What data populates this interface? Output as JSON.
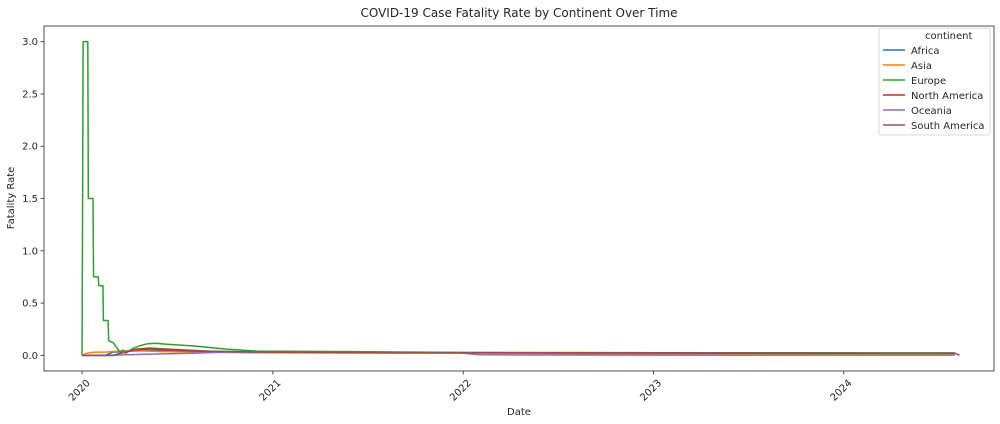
{
  "chart_data": {
    "type": "line",
    "title": "COVID-19 Case Fatality Rate by Continent Over Time",
    "xlabel": "Date",
    "ylabel": "Fatality Rate",
    "x_axis": {
      "kind": "date",
      "range": [
        "2019-10-20",
        "2024-10-15"
      ],
      "ticks": [
        "2020",
        "2021",
        "2022",
        "2023",
        "2024"
      ],
      "tick_dates": [
        "2020-01-01",
        "2021-01-01",
        "2022-01-01",
        "2023-01-01",
        "2024-01-01"
      ],
      "tick_rotation_deg": 45
    },
    "y_axis": {
      "range": [
        -0.15,
        3.15
      ],
      "ticks": [
        0.0,
        0.5,
        1.0,
        1.5,
        2.0,
        2.5,
        3.0
      ],
      "tick_labels": [
        "0.0",
        "0.5",
        "1.0",
        "1.5",
        "2.0",
        "2.5",
        "3.0"
      ]
    },
    "grid": false,
    "legend": {
      "title": "continent",
      "placement": "top-right"
    },
    "series": [
      {
        "name": "Africa",
        "color": "#1f77b4",
        "points": [
          [
            "2020-01-01",
            0.0
          ],
          [
            "2020-02-14",
            0.0
          ],
          [
            "2020-03-01",
            0.03
          ],
          [
            "2020-04-01",
            0.04
          ],
          [
            "2020-05-15",
            0.045
          ],
          [
            "2020-08-01",
            0.03
          ],
          [
            "2021-01-01",
            0.025
          ],
          [
            "2022-01-01",
            0.022
          ],
          [
            "2023-01-01",
            0.02
          ],
          [
            "2024-01-01",
            0.02
          ],
          [
            "2024-08-01",
            0.02
          ]
        ]
      },
      {
        "name": "Asia",
        "color": "#ff7f0e",
        "points": [
          [
            "2020-01-01",
            0.0
          ],
          [
            "2020-01-10",
            0.02
          ],
          [
            "2020-01-25",
            0.03
          ],
          [
            "2020-02-15",
            0.03
          ],
          [
            "2020-03-10",
            0.04
          ],
          [
            "2020-04-15",
            0.045
          ],
          [
            "2020-06-01",
            0.035
          ],
          [
            "2020-09-01",
            0.03
          ],
          [
            "2021-01-01",
            0.025
          ],
          [
            "2022-01-01",
            0.02
          ],
          [
            "2023-01-01",
            0.012
          ],
          [
            "2024-01-01",
            0.01
          ],
          [
            "2024-08-01",
            0.01
          ]
        ]
      },
      {
        "name": "Europe",
        "color": "#2ca02c",
        "points": [
          [
            "2020-01-01",
            0.0
          ],
          [
            "2020-01-03",
            3.0
          ],
          [
            "2020-01-12",
            3.0
          ],
          [
            "2020-01-13",
            1.5
          ],
          [
            "2020-01-22",
            1.5
          ],
          [
            "2020-01-23",
            0.75
          ],
          [
            "2020-02-01",
            0.75
          ],
          [
            "2020-02-02",
            0.667
          ],
          [
            "2020-02-10",
            0.667
          ],
          [
            "2020-02-11",
            0.333
          ],
          [
            "2020-02-20",
            0.333
          ],
          [
            "2020-02-21",
            0.14
          ],
          [
            "2020-03-01",
            0.12
          ],
          [
            "2020-03-08",
            0.07
          ],
          [
            "2020-03-14",
            0.03
          ],
          [
            "2020-03-20",
            0.05
          ],
          [
            "2020-03-25",
            0.02
          ],
          [
            "2020-04-05",
            0.06
          ],
          [
            "2020-04-20",
            0.09
          ],
          [
            "2020-05-05",
            0.11
          ],
          [
            "2020-05-20",
            0.115
          ],
          [
            "2020-06-15",
            0.105
          ],
          [
            "2020-08-01",
            0.09
          ],
          [
            "2020-10-01",
            0.06
          ],
          [
            "2020-12-01",
            0.04
          ],
          [
            "2021-06-01",
            0.035
          ],
          [
            "2022-01-01",
            0.028
          ],
          [
            "2023-01-01",
            0.025
          ],
          [
            "2024-01-01",
            0.024
          ],
          [
            "2024-08-01",
            0.023
          ]
        ]
      },
      {
        "name": "North America",
        "color": "#d62728",
        "points": [
          [
            "2020-01-01",
            0.0
          ],
          [
            "2020-03-01",
            0.0
          ],
          [
            "2020-03-15",
            0.02
          ],
          [
            "2020-04-10",
            0.05
          ],
          [
            "2020-05-10",
            0.06
          ],
          [
            "2020-06-15",
            0.05
          ],
          [
            "2020-09-01",
            0.035
          ],
          [
            "2021-01-01",
            0.028
          ],
          [
            "2022-01-01",
            0.025
          ],
          [
            "2023-01-01",
            0.022
          ],
          [
            "2024-01-01",
            0.02
          ],
          [
            "2024-08-01",
            0.02
          ]
        ]
      },
      {
        "name": "Oceania",
        "color": "#9467bd",
        "points": [
          [
            "2020-01-01",
            0.0
          ],
          [
            "2020-03-01",
            0.0
          ],
          [
            "2020-03-20",
            0.005
          ],
          [
            "2020-05-01",
            0.01
          ],
          [
            "2020-08-01",
            0.02
          ],
          [
            "2020-10-01",
            0.03
          ],
          [
            "2021-06-01",
            0.03
          ],
          [
            "2021-12-15",
            0.028
          ],
          [
            "2022-02-01",
            0.005
          ],
          [
            "2023-01-01",
            0.002
          ],
          [
            "2024-01-01",
            0.002
          ],
          [
            "2024-08-01",
            0.002
          ]
        ]
      },
      {
        "name": "South America",
        "color": "#8c564b",
        "points": [
          [
            "2020-01-01",
            0.0
          ],
          [
            "2020-03-01",
            0.0
          ],
          [
            "2020-03-20",
            0.03
          ],
          [
            "2020-04-15",
            0.06
          ],
          [
            "2020-05-10",
            0.07
          ],
          [
            "2020-06-10",
            0.06
          ],
          [
            "2020-09-01",
            0.04
          ],
          [
            "2021-01-01",
            0.03
          ],
          [
            "2022-01-01",
            0.025
          ],
          [
            "2023-01-01",
            0.022
          ],
          [
            "2024-01-01",
            0.02
          ],
          [
            "2024-08-01",
            0.02
          ],
          [
            "2024-08-10",
            0.0
          ]
        ]
      }
    ]
  }
}
